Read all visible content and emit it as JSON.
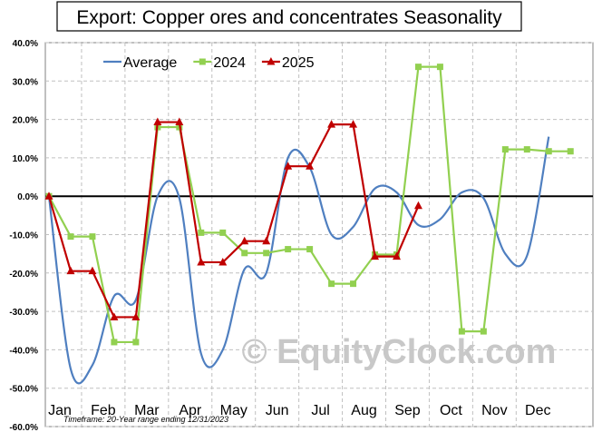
{
  "chart_data": {
    "type": "line",
    "title": "Export: Copper ores and concentrates Seasonality",
    "categories": [
      "Jan",
      "Feb",
      "Mar",
      "Apr",
      "May",
      "Jun",
      "Jul",
      "Aug",
      "Sep",
      "Oct",
      "Nov",
      "Dec"
    ],
    "ylim": [
      -60,
      40
    ],
    "yticks": [
      40,
      30,
      20,
      10,
      0,
      -10,
      -20,
      -30,
      -40,
      -50,
      -60
    ],
    "ytick_labels": [
      "40.0%",
      "30.0%",
      "20.0%",
      "10.0%",
      "0.0%",
      "-10.0%",
      "-20.0%",
      "-30.0%",
      "-40.0%",
      "-50.0%",
      "-60.0%"
    ],
    "grid": true,
    "legend_position": "top-left",
    "footnote": "Timeframe: 20-Year range ending 12/31/2023",
    "watermark": "© EquityClock.com",
    "series": [
      {
        "name": "Average",
        "color": "#4f7fc0",
        "marker": "none",
        "smooth": true,
        "x": [
          0,
          0.5,
          1,
          1.5,
          2,
          2.5,
          3,
          3.5,
          4,
          4.5,
          5,
          5.5,
          6,
          6.5,
          7,
          7.5,
          8,
          8.5,
          9,
          9.5,
          10,
          10.5,
          11,
          11.5
        ],
        "y": [
          0,
          -45,
          -44,
          -26,
          -27,
          0,
          -0.5,
          -41,
          -40,
          -19,
          -20,
          10,
          7.5,
          -10,
          -8,
          2,
          1,
          -7.5,
          -6,
          1,
          -0.5,
          -15,
          -15.5,
          15.5
        ]
      },
      {
        "name": "2024",
        "color": "#92d050",
        "marker": "square",
        "smooth": false,
        "x": [
          0,
          0.5,
          1,
          1.5,
          2,
          2.5,
          3,
          3.5,
          4,
          4.5,
          5,
          5.5,
          6,
          6.5,
          7,
          7.5,
          8,
          8.5,
          9,
          9.5,
          10,
          10.5,
          11,
          11.5,
          12
        ],
        "y": [
          0,
          -10.5,
          -10.5,
          -38,
          -38,
          18,
          18,
          -9.5,
          -9.5,
          -14.8,
          -14.8,
          -13.8,
          -13.8,
          -22.8,
          -22.8,
          -15.2,
          -15.2,
          33.7,
          33.7,
          -35.2,
          -35.2,
          12.2,
          12.2,
          11.7,
          11.7
        ]
      },
      {
        "name": "2025",
        "color": "#c00000",
        "marker": "triangle",
        "smooth": false,
        "x": [
          0,
          0.5,
          1,
          1.5,
          2,
          2.5,
          3,
          3.5,
          4,
          4.5,
          5,
          5.5,
          6,
          6.5,
          7,
          7.5,
          8,
          8.5
        ],
        "y": [
          0,
          -19.5,
          -19.5,
          -31.5,
          -31.5,
          19.3,
          19.3,
          -17.2,
          -17.2,
          -11.7,
          -11.7,
          7.8,
          7.8,
          18.7,
          18.7,
          -15.7,
          -15.7,
          -2.5
        ]
      }
    ]
  }
}
